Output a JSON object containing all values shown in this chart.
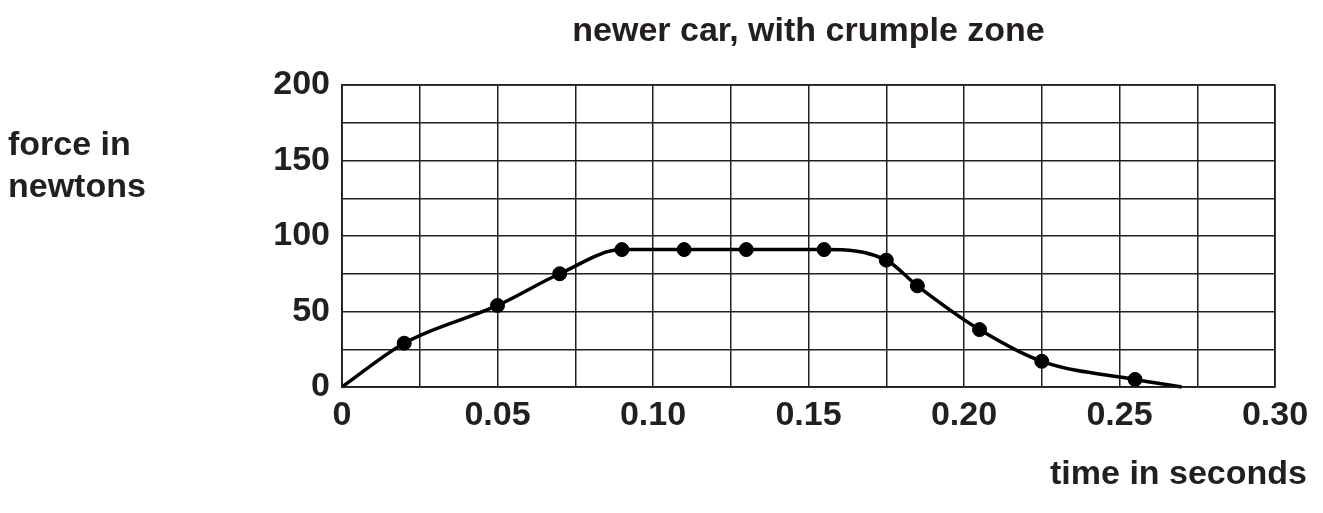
{
  "chart_data": {
    "type": "line",
    "title": "newer car, with crumple zone",
    "xlabel": "time in seconds",
    "ylabel": "force in newtons",
    "series": [
      {
        "color": "#000000",
        "marker": "none",
        "x": [
          0,
          0.02,
          0.05,
          0.07,
          0.09,
          0.11,
          0.13,
          0.155,
          0.175,
          0.185,
          0.205,
          0.225,
          0.255,
          0.27
        ],
        "values": [
          0,
          29,
          54,
          75,
          91,
          91,
          91,
          91,
          84,
          67,
          38,
          17,
          5,
          0
        ]
      },
      {
        "type": "scatter",
        "color": "#000000",
        "marker": "circle",
        "x": [
          0.02,
          0.05,
          0.07,
          0.09,
          0.11,
          0.13,
          0.155,
          0.175,
          0.185,
          0.205,
          0.225,
          0.255
        ],
        "values": [
          29,
          54,
          75,
          91,
          91,
          91,
          91,
          84,
          67,
          38,
          17,
          5
        ]
      }
    ],
    "xlim": [
      0,
      0.3
    ],
    "ylim": [
      0,
      200
    ],
    "xticks": [
      0,
      {
        "value": 0.025,
        "label": null
      },
      {
        "value": 0.05,
        "label": "0.05"
      },
      {
        "value": 0.075,
        "label": null
      },
      {
        "value": 0.1,
        "label": "0.10"
      },
      {
        "value": 0.125,
        "label": null
      },
      {
        "value": 0.15,
        "label": "0.15"
      },
      {
        "value": 0.175,
        "label": null
      },
      {
        "value": 0.2,
        "label": "0.20"
      },
      {
        "value": 0.225,
        "label": null
      },
      {
        "value": 0.25,
        "label": "0.25"
      },
      {
        "value": 0.275,
        "label": null
      },
      {
        "value": 0.3,
        "label": "0.30"
      }
    ],
    "yticks": [
      0,
      {
        "value": 25,
        "label": null
      },
      50,
      {
        "value": 75,
        "label": null
      },
      100,
      {
        "value": 125,
        "label": null
      },
      150,
      {
        "value": 175,
        "label": null
      },
      200
    ],
    "grid": true,
    "legend": false
  }
}
